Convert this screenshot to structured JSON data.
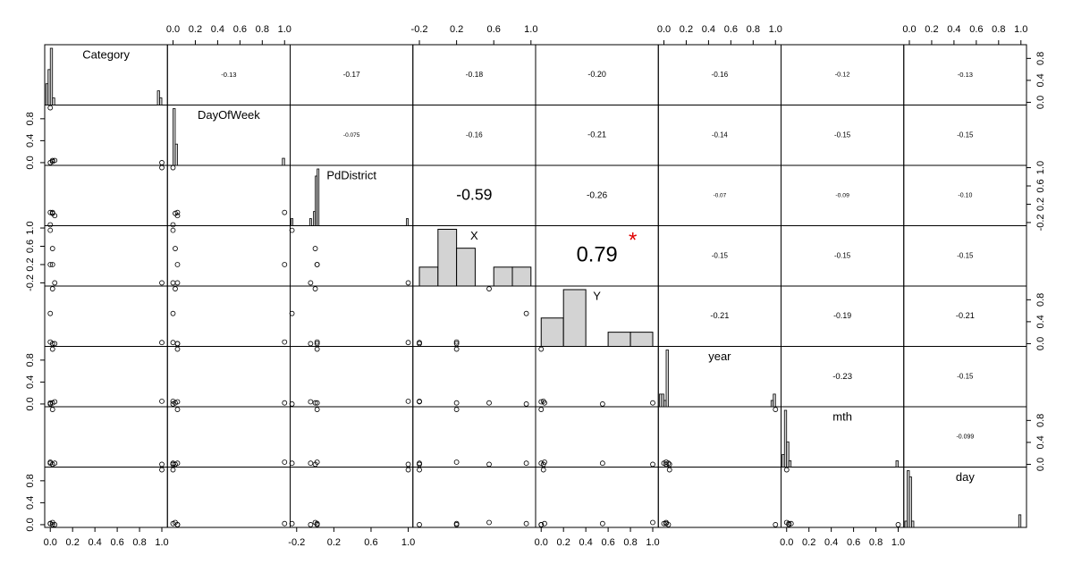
{
  "chart_data": {
    "type": "scatter_matrix",
    "variables": [
      {
        "name": "Category",
        "lim": [
          -0.05,
          1.05
        ],
        "xticks": [
          {
            "value": 0,
            "label": "0.0"
          },
          0.2,
          0.4,
          0.6,
          0.8,
          {
            "value": 1,
            "label": "1.0"
          }
        ],
        "yticks": [
          {
            "value": 0,
            "label": "0.0"
          },
          0.4,
          0.8
        ],
        "values": [
          0.0,
          0.02,
          0.04,
          0.0,
          1.0,
          0.02
        ],
        "spikes": {
          "x": [
            -0.03,
            -0.01,
            0.01,
            0.03,
            0.97,
            0.99
          ],
          "counts": [
            3,
            5,
            8,
            1,
            2,
            1
          ]
        }
      },
      {
        "name": "DayOfWeek",
        "lim": [
          -0.05,
          1.05
        ],
        "xticks": [
          {
            "value": 0,
            "label": "0.0"
          },
          0.2,
          0.4,
          0.6,
          0.8,
          {
            "value": 1,
            "label": "1.0"
          }
        ],
        "yticks": [
          {
            "value": 0,
            "label": "0.0"
          },
          0.4,
          0.8
        ],
        "values": [
          0.0,
          0.02,
          0.04,
          1.0,
          0.0,
          0.04
        ],
        "spikes": {
          "x": [
            0.01,
            0.03,
            0.99
          ],
          "counts": [
            8,
            3,
            1
          ]
        }
      },
      {
        "name": "PdDistrict",
        "lim": [
          -0.27,
          1.05
        ],
        "xticks": [
          -0.2,
          0.2,
          0.6,
          {
            "value": 1,
            "label": "1.0"
          }
        ],
        "yticks": [
          -0.2,
          0.2,
          0.6,
          {
            "value": 1,
            "label": "1.0"
          }
        ],
        "values": [
          -0.25,
          0.0,
          -0.05,
          0.02,
          1.0,
          0.02
        ],
        "spikes": {
          "x": [
            -0.25,
            -0.05,
            -0.01,
            0.01,
            0.03,
            0.99
          ],
          "counts": [
            1,
            1,
            2,
            7,
            8,
            1
          ]
        }
      },
      {
        "name": "X",
        "lim": [
          -0.27,
          1.05
        ],
        "xticks": [
          -0.2,
          0.2,
          0.6,
          {
            "value": 1,
            "label": "1.0"
          }
        ],
        "yticks": [
          -0.2,
          0.2,
          0.6,
          {
            "value": 1,
            "label": "1.0"
          }
        ],
        "values": [
          0.95,
          0.55,
          -0.2,
          0.2,
          -0.2,
          0.2
        ],
        "hist": {
          "bins": [
            -0.2,
            0,
            0.2,
            0.4,
            0.6,
            0.8,
            1.0
          ],
          "counts": [
            1,
            3,
            2,
            0,
            1,
            1
          ]
        }
      },
      {
        "name": "Y",
        "lim": [
          -0.05,
          1.05
        ],
        "xticks": [
          {
            "value": 0,
            "label": "0.0"
          },
          0.2,
          0.4,
          0.6,
          0.8,
          {
            "value": 1,
            "label": "1.0"
          }
        ],
        "yticks": [
          {
            "value": 0,
            "label": "0.0"
          },
          0.4,
          0.8
        ],
        "values": [
          0.55,
          1.0,
          0.0,
          0.03,
          0.02,
          0.0
        ],
        "hist": {
          "bins": [
            0,
            0.2,
            0.4,
            0.6,
            0.8,
            1.0
          ],
          "counts": [
            2,
            4,
            0,
            1,
            1
          ]
        }
      },
      {
        "name": "year",
        "lim": [
          -0.05,
          1.05
        ],
        "xticks": [
          {
            "value": 0,
            "label": "0.0"
          },
          0.2,
          0.4,
          0.6,
          0.8,
          {
            "value": 1,
            "label": "1.0"
          }
        ],
        "yticks": [
          {
            "value": 0,
            "label": "0.0"
          },
          0.4,
          0.8
        ],
        "values": [
          0.0,
          0.02,
          0.04,
          0.02,
          0.05,
          1.0
        ],
        "spikes": {
          "x": [
            -0.03,
            -0.01,
            0.01,
            0.03,
            0.97,
            0.99
          ],
          "counts": [
            2,
            2,
            1,
            9,
            1,
            2
          ]
        }
      },
      {
        "name": "mth",
        "lim": [
          -0.05,
          1.05
        ],
        "xticks": [
          {
            "value": 0,
            "label": "0.0"
          },
          0.2,
          0.4,
          0.6,
          0.8,
          {
            "value": 1,
            "label": "1.0"
          }
        ],
        "yticks": [
          {
            "value": 0,
            "label": "0.0"
          },
          0.4,
          0.8
        ],
        "values": [
          0.02,
          0.0,
          0.02,
          0.04,
          0.0,
          1.0
        ],
        "spikes": {
          "x": [
            -0.03,
            -0.01,
            0.01,
            0.03,
            0.99
          ],
          "counts": [
            2,
            9,
            4,
            1,
            1
          ]
        }
      },
      {
        "name": "day",
        "lim": [
          -0.05,
          1.05
        ],
        "xticks": [
          {
            "value": 0,
            "label": "0.0"
          },
          0.2,
          0.4,
          0.6,
          0.8,
          {
            "value": 1,
            "label": "1.0"
          }
        ],
        "yticks": [
          {
            "value": 0,
            "label": "0.0"
          },
          0.4,
          0.8
        ],
        "values": [
          0.02,
          0.04,
          0.0,
          0.02,
          1.0,
          0.0
        ],
        "spikes": {
          "x": [
            -0.03,
            -0.01,
            0.01,
            0.03,
            0.99
          ],
          "counts": [
            1,
            9,
            8,
            1,
            2
          ]
        }
      }
    ],
    "correlations": [
      [
        -0.13,
        -0.17,
        -0.18,
        {
          "value": -0.2,
          "label": "-0.20"
        },
        -0.16,
        -0.12,
        -0.13
      ],
      [
        -0.075,
        -0.16,
        -0.21,
        -0.14,
        -0.15,
        -0.15
      ],
      [
        -0.59,
        -0.26,
        -0.07,
        -0.09,
        {
          "value": -0.1,
          "label": "-0.10"
        }
      ],
      [
        0.79,
        -0.15,
        -0.15,
        -0.15
      ],
      [
        -0.21,
        -0.19,
        -0.21
      ],
      [
        -0.23,
        -0.15
      ],
      [
        -0.099
      ]
    ],
    "significance": [
      [
        null,
        null,
        null,
        null,
        null,
        null,
        null
      ],
      [
        null,
        null,
        null,
        null,
        null,
        null
      ],
      [
        null,
        null,
        null,
        null,
        null
      ],
      [
        "*",
        null,
        null,
        null
      ],
      [
        null,
        null,
        null
      ],
      [
        null,
        null
      ],
      [
        null
      ]
    ]
  }
}
